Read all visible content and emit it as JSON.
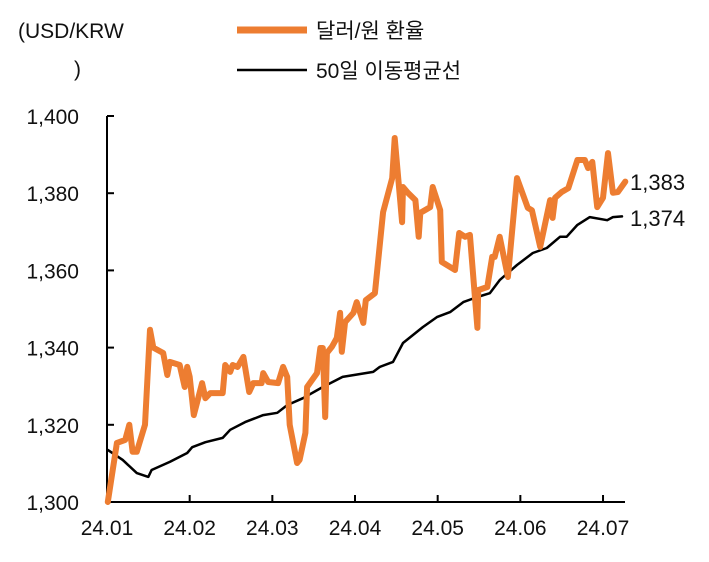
{
  "chart_data": {
    "type": "line",
    "unit_label": "(USD/KRW",
    "unit_label_close": ")",
    "x_unit": "months since 24.01",
    "xlim": [
      0,
      6.3
    ],
    "ylim": [
      1300,
      1400
    ],
    "yticks": [
      1300,
      1320,
      1340,
      1360,
      1380,
      1400
    ],
    "ytick_labels": [
      "1,300",
      "1,320",
      "1,340",
      "1,360",
      "1,380",
      "1,400"
    ],
    "xticks": [
      0,
      1,
      2,
      3,
      4,
      5,
      6
    ],
    "xtick_labels": [
      "24.01",
      "24.02",
      "24.03",
      "24.04",
      "24.05",
      "24.06",
      "24.07"
    ],
    "grid": false,
    "legend_position": "top",
    "series": [
      {
        "name": "달러/원 환율",
        "color": "#ED7D31",
        "end_label": "1,383",
        "x": [
          0.01,
          0.12,
          0.22,
          0.27,
          0.31,
          0.36,
          0.46,
          0.52,
          0.56,
          0.68,
          0.73,
          0.76,
          0.88,
          0.94,
          0.97,
          1.0,
          1.05,
          1.15,
          1.19,
          1.25,
          1.4,
          1.43,
          1.49,
          1.52,
          1.58,
          1.65,
          1.72,
          1.77,
          1.87,
          1.89,
          1.95,
          2.07,
          2.13,
          2.18,
          2.21,
          2.3,
          2.33,
          2.4,
          2.42,
          2.54,
          2.58,
          2.61,
          2.64,
          2.66,
          2.72,
          2.78,
          2.82,
          2.84,
          2.88,
          2.98,
          3.02,
          3.1,
          3.13,
          3.24,
          3.34,
          3.45,
          3.48,
          3.57,
          3.58,
          3.64,
          3.73,
          3.77,
          3.79,
          3.91,
          3.94,
          4.03,
          4.05,
          4.21,
          4.26,
          4.33,
          4.39,
          4.48,
          4.49,
          4.6,
          4.66,
          4.69,
          4.75,
          4.85,
          4.96,
          5.09,
          5.14,
          5.24,
          5.36,
          5.39,
          5.42,
          5.5,
          5.58,
          5.69,
          5.78,
          5.82,
          5.87,
          5.93,
          6.0,
          6.06,
          6.12,
          6.18,
          6.27
        ],
        "values": [
          1300,
          1315.3,
          1316.1,
          1320,
          1313,
          1313,
          1320,
          1344.6,
          1340,
          1338.6,
          1332.9,
          1336.3,
          1335.5,
          1329.8,
          1335,
          1332.4,
          1322.5,
          1330.8,
          1326.9,
          1328.2,
          1328.2,
          1335.5,
          1333.7,
          1335.5,
          1335,
          1337.6,
          1328.5,
          1330.8,
          1330.8,
          1333.4,
          1331.1,
          1330.8,
          1335,
          1332.4,
          1320,
          1310.1,
          1310.9,
          1317.9,
          1329.8,
          1333.4,
          1339.9,
          1339.9,
          1322,
          1338.6,
          1340.2,
          1342.5,
          1349,
          1338.9,
          1346.6,
          1349,
          1351.8,
          1346.4,
          1352.3,
          1354.1,
          1375.1,
          1383.9,
          1394.3,
          1372.5,
          1381.6,
          1380.1,
          1378.2,
          1368.7,
          1374.9,
          1376.4,
          1381.6,
          1375.6,
          1362.2,
          1360.1,
          1369.7,
          1368.7,
          1369.2,
          1345.1,
          1354.9,
          1355.7,
          1363.5,
          1363.5,
          1368.7,
          1358.3,
          1383.9,
          1376.2,
          1375.6,
          1366.1,
          1378.2,
          1373.6,
          1378.8,
          1380.3,
          1381.3,
          1388.6,
          1388.6,
          1386.5,
          1388.1,
          1376.4,
          1378.8,
          1390.4,
          1380.1,
          1380.3,
          1383
        ]
      },
      {
        "name": "50일 이동평균선",
        "color": "#000000",
        "end_label": "1,374",
        "x": [
          0.01,
          0.19,
          0.36,
          0.5,
          0.54,
          0.76,
          0.97,
          1.03,
          1.19,
          1.4,
          1.49,
          1.67,
          1.89,
          2.06,
          2.18,
          2.37,
          2.61,
          2.85,
          3.22,
          3.3,
          3.46,
          3.58,
          3.82,
          3.99,
          4.15,
          4.31,
          4.48,
          4.63,
          4.75,
          4.96,
          5.15,
          5.32,
          5.48,
          5.56,
          5.69,
          5.84,
          6.05,
          6.12,
          6.23
        ],
        "values": [
          1313.5,
          1310.9,
          1307.5,
          1306.5,
          1308.3,
          1310.4,
          1312.7,
          1314.2,
          1315.5,
          1316.6,
          1318.7,
          1320.7,
          1322.5,
          1323.1,
          1325.1,
          1326.9,
          1329.8,
          1332.4,
          1333.7,
          1335,
          1336.3,
          1341.2,
          1345.3,
          1347.9,
          1349.2,
          1351.8,
          1353.1,
          1354.1,
          1357.5,
          1361.4,
          1364.5,
          1365.8,
          1368.7,
          1368.7,
          1371.8,
          1373.8,
          1373,
          1373.8,
          1374
        ]
      }
    ]
  }
}
